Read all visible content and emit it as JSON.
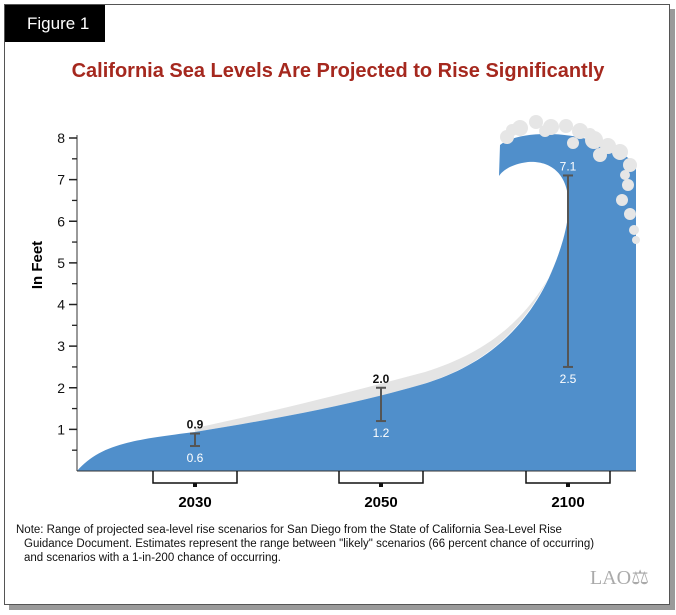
{
  "figure_label": "Figure 1",
  "chart_data": {
    "type": "range",
    "title": "California Sea Levels Are Projected to Rise Significantly",
    "ylabel": "In Feet",
    "ylim": [
      0,
      8
    ],
    "yticks": [
      1,
      2,
      3,
      4,
      5,
      6,
      7,
      8
    ],
    "categories": [
      "2030",
      "2050",
      "2100"
    ],
    "series": [
      {
        "name": "low",
        "values": [
          0.6,
          1.2,
          2.5
        ]
      },
      {
        "name": "high",
        "values": [
          0.9,
          2.0,
          7.1
        ]
      }
    ],
    "colors": {
      "wave": "#508fcb",
      "foam": "#e6e6e6",
      "title": "#a5281e"
    }
  },
  "note_lines": [
    "Note: Range of projected sea-level rise scenarios for San Diego from the State of California Sea-Level Rise",
    "Guidance Document. Estimates represent the range between \"likely\" scenarios (66 percent chance of occurring)",
    "and scenarios with a 1-in-200 chance of occurring."
  ],
  "logo": "LAO"
}
